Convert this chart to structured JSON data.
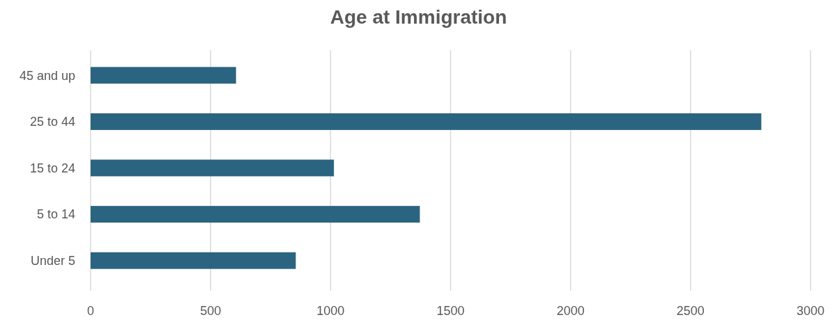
{
  "chart_data": {
    "type": "bar",
    "title": "Age at Immigration",
    "orientation": "horizontal",
    "categories": [
      "45 and up",
      "25 to 44",
      "15 to 24",
      "5 to 14",
      "Under 5"
    ],
    "values": [
      606,
      2795,
      1014,
      1372,
      855
    ],
    "color": "#2b6480",
    "xlim": [
      0,
      3000
    ],
    "xticks": [
      0,
      500,
      1000,
      1500,
      2000,
      2500,
      3000
    ],
    "grid": "x"
  }
}
